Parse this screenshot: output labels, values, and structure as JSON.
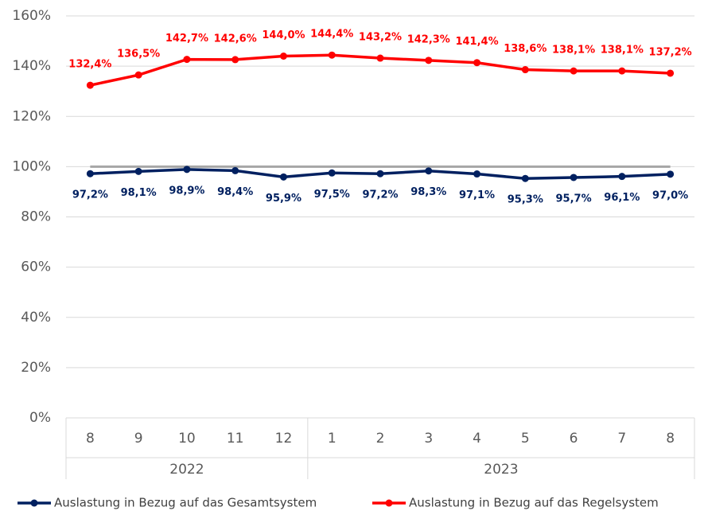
{
  "chart_data": {
    "type": "line",
    "groups": [
      {
        "name": "2022",
        "categories": [
          "8",
          "9",
          "10",
          "11",
          "12"
        ]
      },
      {
        "name": "2023",
        "categories": [
          "1",
          "2",
          "3",
          "4",
          "5",
          "6",
          "7",
          "8"
        ]
      }
    ],
    "series": [
      {
        "name": "Auslastung in Bezug auf das Gesamtsystem",
        "color": "#002060",
        "values": [
          97.2,
          98.1,
          98.9,
          98.4,
          95.9,
          97.5,
          97.2,
          98.3,
          97.1,
          95.3,
          95.7,
          96.1,
          97.0
        ],
        "value_labels": [
          "97,2%",
          "98,1%",
          "98,9%",
          "98,4%",
          "95,9%",
          "97,5%",
          "97,2%",
          "98,3%",
          "97,1%",
          "95,3%",
          "95,7%",
          "96,1%",
          "97,0%"
        ]
      },
      {
        "name": "Auslastung in Bezug auf das Regelsystem",
        "color": "#ff0000",
        "values": [
          132.4,
          136.5,
          142.7,
          142.6,
          144.0,
          144.4,
          143.2,
          142.3,
          141.4,
          138.6,
          138.1,
          138.1,
          137.2
        ],
        "value_labels": [
          "132,4%",
          "136,5%",
          "142,7%",
          "142,6%",
          "144,0%",
          "144,4%",
          "143,2%",
          "142,3%",
          "141,4%",
          "138,6%",
          "138,1%",
          "138,1%",
          "137,2%"
        ]
      }
    ],
    "reference_line": {
      "value": 100,
      "color": "#a6a6a6"
    },
    "ylim": [
      0,
      160
    ],
    "yticks": [
      {
        "value": 0,
        "label": "0%"
      },
      {
        "value": 20,
        "label": "20%"
      },
      {
        "value": 40,
        "label": "40%"
      },
      {
        "value": 60,
        "label": "60%"
      },
      {
        "value": 80,
        "label": "80%"
      },
      {
        "value": 100,
        "label": "100%"
      },
      {
        "value": 120,
        "label": "120%"
      },
      {
        "value": 140,
        "label": "140%"
      },
      {
        "value": 160,
        "label": "160%"
      }
    ],
    "grid": true,
    "legend": "bottom"
  }
}
